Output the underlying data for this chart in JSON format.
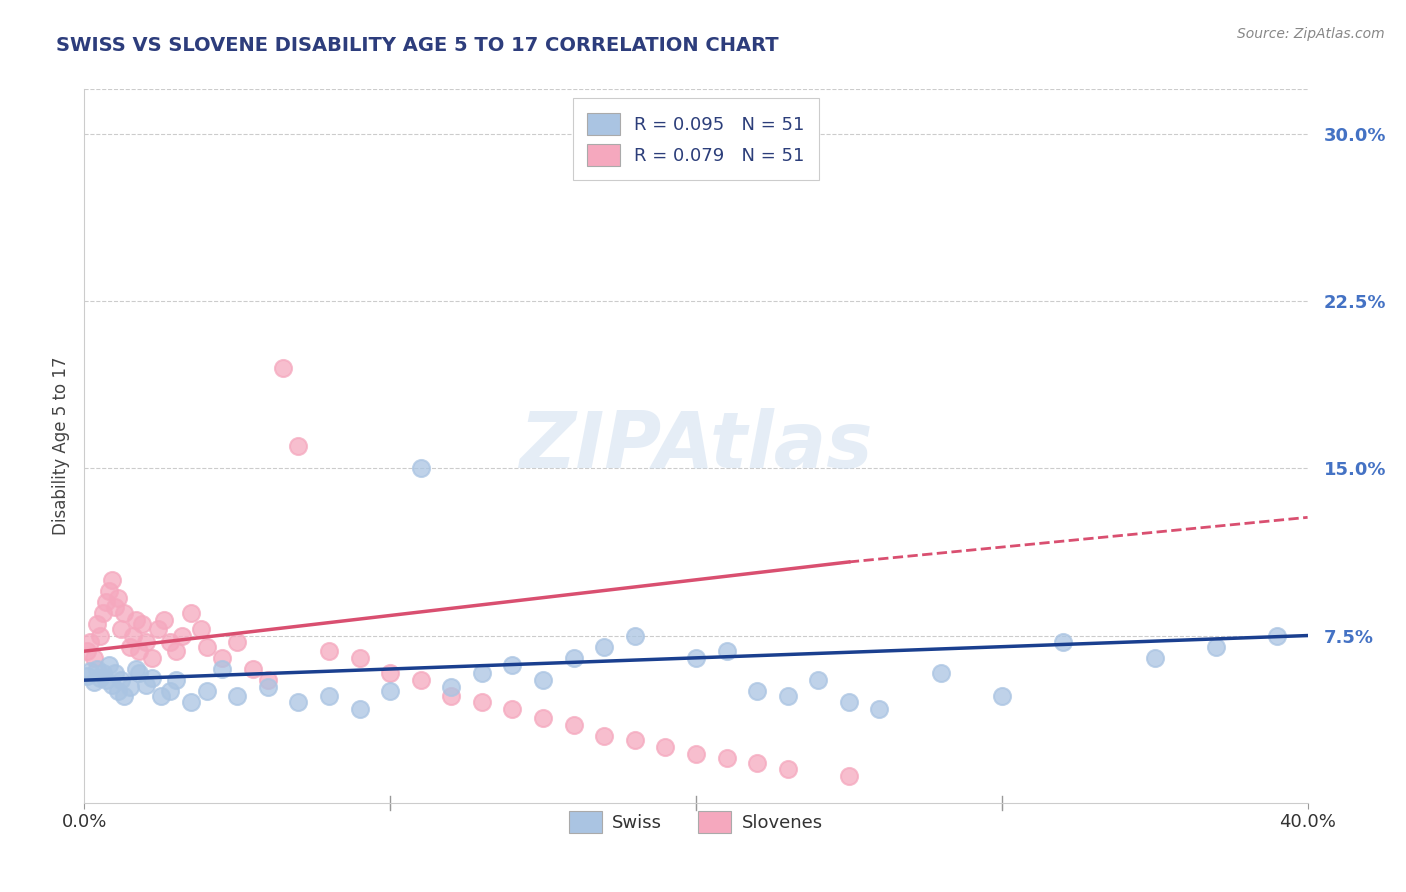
{
  "title": "SWISS VS SLOVENE DISABILITY AGE 5 TO 17 CORRELATION CHART",
  "source": "Source: ZipAtlas.com",
  "ylabel": "Disability Age 5 to 17",
  "xlim": [
    0.0,
    0.4
  ],
  "ylim": [
    0.0,
    0.32
  ],
  "xticks": [
    0.0,
    0.1,
    0.2,
    0.3,
    0.4
  ],
  "xticklabels": [
    "0.0%",
    "",
    "",
    "",
    "40.0%"
  ],
  "yticks_right": [
    0.075,
    0.15,
    0.225,
    0.3
  ],
  "yticks_right_labels": [
    "7.5%",
    "15.0%",
    "22.5%",
    "30.0%"
  ],
  "r_swiss": 0.095,
  "n_swiss": 51,
  "r_slovene": 0.079,
  "n_slovene": 51,
  "swiss_color": "#aac4e2",
  "slovene_color": "#f5a8be",
  "swiss_line_color": "#1a3f8f",
  "slovene_line_color": "#d94f70",
  "title_color": "#2d3d7c",
  "axis_label_color": "#444444",
  "tick_label_color_right": "#4472c4",
  "background_color": "#ffffff",
  "grid_color": "#cccccc",
  "swiss_x": [
    0.001,
    0.002,
    0.003,
    0.004,
    0.005,
    0.006,
    0.007,
    0.008,
    0.009,
    0.01,
    0.011,
    0.012,
    0.013,
    0.015,
    0.017,
    0.018,
    0.02,
    0.022,
    0.025,
    0.028,
    0.03,
    0.035,
    0.04,
    0.045,
    0.05,
    0.06,
    0.07,
    0.08,
    0.09,
    0.1,
    0.11,
    0.12,
    0.13,
    0.14,
    0.15,
    0.16,
    0.17,
    0.18,
    0.2,
    0.21,
    0.22,
    0.23,
    0.24,
    0.25,
    0.26,
    0.28,
    0.3,
    0.32,
    0.35,
    0.37,
    0.39
  ],
  "swiss_y": [
    0.057,
    0.059,
    0.054,
    0.06,
    0.056,
    0.058,
    0.055,
    0.062,
    0.053,
    0.058,
    0.05,
    0.055,
    0.048,
    0.052,
    0.06,
    0.058,
    0.053,
    0.056,
    0.048,
    0.05,
    0.055,
    0.045,
    0.05,
    0.06,
    0.048,
    0.052,
    0.045,
    0.048,
    0.042,
    0.05,
    0.15,
    0.052,
    0.058,
    0.062,
    0.055,
    0.065,
    0.07,
    0.075,
    0.065,
    0.068,
    0.05,
    0.048,
    0.055,
    0.045,
    0.042,
    0.058,
    0.048,
    0.072,
    0.065,
    0.07,
    0.075
  ],
  "slovene_x": [
    0.001,
    0.002,
    0.003,
    0.004,
    0.005,
    0.006,
    0.007,
    0.008,
    0.009,
    0.01,
    0.011,
    0.012,
    0.013,
    0.015,
    0.016,
    0.017,
    0.018,
    0.019,
    0.02,
    0.022,
    0.024,
    0.026,
    0.028,
    0.03,
    0.032,
    0.035,
    0.038,
    0.04,
    0.045,
    0.05,
    0.055,
    0.06,
    0.065,
    0.07,
    0.08,
    0.09,
    0.1,
    0.11,
    0.12,
    0.13,
    0.14,
    0.15,
    0.16,
    0.17,
    0.18,
    0.19,
    0.2,
    0.21,
    0.22,
    0.23,
    0.25
  ],
  "slovene_y": [
    0.068,
    0.072,
    0.065,
    0.08,
    0.075,
    0.085,
    0.09,
    0.095,
    0.1,
    0.088,
    0.092,
    0.078,
    0.085,
    0.07,
    0.075,
    0.082,
    0.068,
    0.08,
    0.072,
    0.065,
    0.078,
    0.082,
    0.072,
    0.068,
    0.075,
    0.085,
    0.078,
    0.07,
    0.065,
    0.072,
    0.06,
    0.055,
    0.195,
    0.16,
    0.068,
    0.065,
    0.058,
    0.055,
    0.048,
    0.045,
    0.042,
    0.038,
    0.035,
    0.03,
    0.028,
    0.025,
    0.022,
    0.02,
    0.018,
    0.015,
    0.012
  ],
  "swiss_line_start_x": 0.0,
  "swiss_line_end_x": 0.4,
  "swiss_line_start_y": 0.055,
  "swiss_line_end_y": 0.075,
  "slovene_line_start_x": 0.0,
  "slovene_line_solid_end_x": 0.25,
  "slovene_line_end_x": 0.4,
  "slovene_line_start_y": 0.068,
  "slovene_line_solid_end_y": 0.108,
  "slovene_line_end_y": 0.128
}
